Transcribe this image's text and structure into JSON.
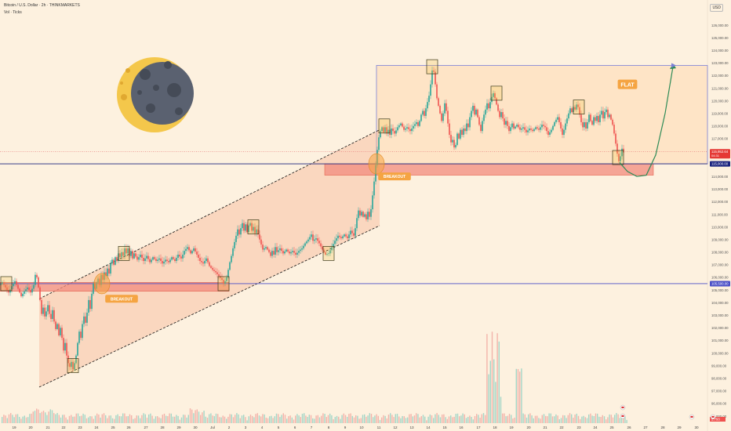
{
  "header": {
    "symbol_line": "Bitcoin / U.S. Dollar · 2h · THINKMARKETS",
    "volume_line": "Vol · Ticks"
  },
  "currency": "USD",
  "chart_data": {
    "type": "candlestick",
    "symbol": "Bitcoin / U.S. Dollar",
    "timeframe": "2h",
    "ylim": [
      94000,
      127000
    ],
    "y_ticks": [
      95000,
      96000,
      97000,
      98000,
      99000,
      100000,
      101000,
      102000,
      103000,
      104000,
      105000,
      106000,
      107000,
      108000,
      109000,
      110000,
      111000,
      112000,
      113000,
      114000,
      115000,
      116000,
      117000,
      118000,
      119000,
      120000,
      121000,
      122000,
      123000,
      124000,
      125000,
      126000
    ],
    "x_labels": [
      "19",
      "20",
      "21",
      "22",
      "23",
      "24",
      "25",
      "26",
      "27",
      "28",
      "29",
      "30",
      "Jul",
      "2",
      "3",
      "4",
      "5",
      "6",
      "7",
      "8",
      "9",
      "10",
      "11",
      "12",
      "13",
      "14",
      "15",
      "16",
      "17",
      "18",
      "19",
      "20",
      "21",
      "22",
      "23",
      "24",
      "25",
      "26",
      "27",
      "28",
      "29",
      "30"
    ],
    "price_path": [
      [
        0,
        105400
      ],
      [
        4,
        105600
      ],
      [
        8,
        105200
      ],
      [
        12,
        104800
      ],
      [
        16,
        105300
      ],
      [
        20,
        105700
      ],
      [
        24,
        105100
      ],
      [
        28,
        104500
      ],
      [
        32,
        104900
      ],
      [
        36,
        105200
      ],
      [
        40,
        104800
      ],
      [
        44,
        105400
      ],
      [
        46,
        106200
      ],
      [
        48,
        106000
      ],
      [
        50,
        105200
      ],
      [
        52,
        104200
      ],
      [
        54,
        103100
      ],
      [
        56,
        103600
      ],
      [
        58,
        102900
      ],
      [
        60,
        103300
      ],
      [
        62,
        103800
      ],
      [
        64,
        103100
      ],
      [
        66,
        102700
      ],
      [
        68,
        103400
      ],
      [
        70,
        102500
      ],
      [
        72,
        101900
      ],
      [
        74,
        102300
      ],
      [
        76,
        101400
      ],
      [
        78,
        102000
      ],
      [
        80,
        101200
      ],
      [
        82,
        100200
      ],
      [
        84,
        100800
      ],
      [
        86,
        99800
      ],
      [
        88,
        99200
      ],
      [
        90,
        98900
      ],
      [
        92,
        99300
      ],
      [
        94,
        98700
      ],
      [
        96,
        99200
      ],
      [
        98,
        99800
      ],
      [
        100,
        100800
      ],
      [
        102,
        101700
      ],
      [
        104,
        101200
      ],
      [
        106,
        102300
      ],
      [
        108,
        102900
      ],
      [
        110,
        102400
      ],
      [
        112,
        103200
      ],
      [
        114,
        104200
      ],
      [
        116,
        103500
      ],
      [
        118,
        104700
      ],
      [
        120,
        105500
      ],
      [
        122,
        105100
      ],
      [
        124,
        105600
      ],
      [
        126,
        105900
      ],
      [
        128,
        105400
      ],
      [
        130,
        106200
      ],
      [
        132,
        105800
      ],
      [
        134,
        106400
      ],
      [
        136,
        106100
      ],
      [
        138,
        106700
      ],
      [
        140,
        106300
      ],
      [
        142,
        107100
      ],
      [
        144,
        107400
      ],
      [
        146,
        107000
      ],
      [
        148,
        107600
      ],
      [
        150,
        107300
      ],
      [
        152,
        107900
      ],
      [
        154,
        107600
      ],
      [
        156,
        108000
      ],
      [
        158,
        107700
      ],
      [
        160,
        108300
      ],
      [
        162,
        107900
      ],
      [
        164,
        108300
      ],
      [
        166,
        107700
      ],
      [
        168,
        108100
      ],
      [
        170,
        107500
      ],
      [
        172,
        107900
      ],
      [
        176,
        107400
      ],
      [
        180,
        107800
      ],
      [
        184,
        107300
      ],
      [
        188,
        107700
      ],
      [
        192,
        107200
      ],
      [
        196,
        107600
      ],
      [
        200,
        107300
      ],
      [
        204,
        107500
      ],
      [
        208,
        107100
      ],
      [
        212,
        107400
      ],
      [
        216,
        107200
      ],
      [
        220,
        107600
      ],
      [
        224,
        107300
      ],
      [
        228,
        107800
      ],
      [
        232,
        107500
      ],
      [
        236,
        108100
      ],
      [
        240,
        108400
      ],
      [
        244,
        107900
      ],
      [
        248,
        108300
      ],
      [
        252,
        107800
      ],
      [
        256,
        107300
      ],
      [
        260,
        107100
      ],
      [
        264,
        107500
      ],
      [
        268,
        106900
      ],
      [
        272,
        106600
      ],
      [
        276,
        106400
      ],
      [
        280,
        106100
      ],
      [
        284,
        105800
      ],
      [
        286,
        105500
      ],
      [
        288,
        105700
      ],
      [
        290,
        106000
      ],
      [
        292,
        106600
      ],
      [
        294,
        107200
      ],
      [
        296,
        107700
      ],
      [
        298,
        108300
      ],
      [
        300,
        108800
      ],
      [
        302,
        109300
      ],
      [
        304,
        109800
      ],
      [
        306,
        109400
      ],
      [
        308,
        109900
      ],
      [
        310,
        110300
      ],
      [
        312,
        109700
      ],
      [
        314,
        110200
      ],
      [
        316,
        109600
      ],
      [
        318,
        110100
      ],
      [
        320,
        110300
      ],
      [
        322,
        109700
      ],
      [
        324,
        110000
      ],
      [
        326,
        109500
      ],
      [
        328,
        109800
      ],
      [
        330,
        109400
      ],
      [
        332,
        109000
      ],
      [
        334,
        108600
      ],
      [
        336,
        108200
      ],
      [
        340,
        108400
      ],
      [
        344,
        108000
      ],
      [
        346,
        107700
      ],
      [
        348,
        108100
      ],
      [
        350,
        107800
      ],
      [
        352,
        108400
      ],
      [
        354,
        108000
      ],
      [
        358,
        108300
      ],
      [
        362,
        107900
      ],
      [
        366,
        108200
      ],
      [
        370,
        107900
      ],
      [
        374,
        108100
      ],
      [
        378,
        107800
      ],
      [
        382,
        108100
      ],
      [
        386,
        108300
      ],
      [
        390,
        108700
      ],
      [
        394,
        109000
      ],
      [
        398,
        109400
      ],
      [
        400,
        108900
      ],
      [
        404,
        109100
      ],
      [
        408,
        108700
      ],
      [
        412,
        108200
      ],
      [
        416,
        107800
      ],
      [
        420,
        107900
      ],
      [
        424,
        108400
      ],
      [
        428,
        108900
      ],
      [
        432,
        109300
      ],
      [
        436,
        109100
      ],
      [
        440,
        109400
      ],
      [
        444,
        109100
      ],
      [
        448,
        109700
      ],
      [
        452,
        109300
      ],
      [
        454,
        109900
      ],
      [
        456,
        110700
      ],
      [
        458,
        111300
      ],
      [
        460,
        110900
      ],
      [
        462,
        111200
      ],
      [
        464,
        110800
      ],
      [
        466,
        111000
      ],
      [
        468,
        110600
      ],
      [
        470,
        111200
      ],
      [
        472,
        110800
      ],
      [
        474,
        111400
      ],
      [
        476,
        112500
      ],
      [
        478,
        113600
      ],
      [
        480,
        114900
      ],
      [
        482,
        116100
      ],
      [
        484,
        117100
      ],
      [
        486,
        117600
      ],
      [
        488,
        117900
      ],
      [
        490,
        117500
      ],
      [
        492,
        117900
      ],
      [
        494,
        117400
      ],
      [
        496,
        117700
      ],
      [
        498,
        117300
      ],
      [
        500,
        117800
      ],
      [
        504,
        117400
      ],
      [
        508,
        117900
      ],
      [
        512,
        118200
      ],
      [
        516,
        117700
      ],
      [
        520,
        117900
      ],
      [
        524,
        117600
      ],
      [
        528,
        118000
      ],
      [
        532,
        118300
      ],
      [
        534,
        118000
      ],
      [
        536,
        118400
      ],
      [
        538,
        118900
      ],
      [
        540,
        119200
      ],
      [
        542,
        118800
      ],
      [
        544,
        119400
      ],
      [
        546,
        119900
      ],
      [
        548,
        120400
      ],
      [
        550,
        121300
      ],
      [
        552,
        122400
      ],
      [
        554,
        122300
      ],
      [
        556,
        121300
      ],
      [
        558,
        120200
      ],
      [
        560,
        119600
      ],
      [
        562,
        119000
      ],
      [
        564,
        118400
      ],
      [
        566,
        119000
      ],
      [
        568,
        119800
      ],
      [
        570,
        119200
      ],
      [
        572,
        118200
      ],
      [
        574,
        117300
      ],
      [
        576,
        116700
      ],
      [
        578,
        116900
      ],
      [
        580,
        116300
      ],
      [
        582,
        116500
      ],
      [
        584,
        117400
      ],
      [
        586,
        117000
      ],
      [
        588,
        117700
      ],
      [
        590,
        117300
      ],
      [
        592,
        117800
      ],
      [
        594,
        117600
      ],
      [
        596,
        118200
      ],
      [
        598,
        117900
      ],
      [
        600,
        118700
      ],
      [
        602,
        119200
      ],
      [
        604,
        119600
      ],
      [
        606,
        118900
      ],
      [
        608,
        119300
      ],
      [
        610,
        118700
      ],
      [
        612,
        118100
      ],
      [
        614,
        117600
      ],
      [
        616,
        118400
      ],
      [
        618,
        118900
      ],
      [
        620,
        119300
      ],
      [
        622,
        119800
      ],
      [
        624,
        119400
      ],
      [
        626,
        119900
      ],
      [
        628,
        120300
      ],
      [
        630,
        120600
      ],
      [
        632,
        120200
      ],
      [
        634,
        119700
      ],
      [
        636,
        119200
      ],
      [
        638,
        118700
      ],
      [
        640,
        119100
      ],
      [
        642,
        118600
      ],
      [
        644,
        118100
      ],
      [
        646,
        118400
      ],
      [
        648,
        118000
      ],
      [
        650,
        117600
      ],
      [
        652,
        117900
      ],
      [
        654,
        118200
      ],
      [
        656,
        117800
      ],
      [
        660,
        118100
      ],
      [
        664,
        117700
      ],
      [
        668,
        117900
      ],
      [
        672,
        117500
      ],
      [
        676,
        117800
      ],
      [
        680,
        117600
      ],
      [
        684,
        117900
      ],
      [
        688,
        117700
      ],
      [
        692,
        118100
      ],
      [
        696,
        117900
      ],
      [
        700,
        117300
      ],
      [
        704,
        117700
      ],
      [
        708,
        118300
      ],
      [
        712,
        118700
      ],
      [
        714,
        118300
      ],
      [
        716,
        117800
      ],
      [
        718,
        117300
      ],
      [
        720,
        117700
      ],
      [
        722,
        118200
      ],
      [
        724,
        118600
      ],
      [
        726,
        119000
      ],
      [
        728,
        119400
      ],
      [
        730,
        119100
      ],
      [
        732,
        119500
      ],
      [
        734,
        119300
      ],
      [
        736,
        119700
      ],
      [
        738,
        119500
      ],
      [
        740,
        118900
      ],
      [
        742,
        118300
      ],
      [
        744,
        117900
      ],
      [
        746,
        118300
      ],
      [
        748,
        117800
      ],
      [
        750,
        118300
      ],
      [
        752,
        118900
      ],
      [
        754,
        118400
      ],
      [
        756,
        118100
      ],
      [
        758,
        118700
      ],
      [
        760,
        118400
      ],
      [
        762,
        118800
      ],
      [
        764,
        118300
      ],
      [
        766,
        118900
      ],
      [
        768,
        119200
      ],
      [
        770,
        118600
      ],
      [
        772,
        119100
      ],
      [
        774,
        119300
      ],
      [
        776,
        118700
      ],
      [
        778,
        118900
      ],
      [
        780,
        118500
      ],
      [
        782,
        118100
      ],
      [
        784,
        117400
      ],
      [
        786,
        116600
      ],
      [
        788,
        115800
      ],
      [
        790,
        115200
      ],
      [
        792,
        115600
      ],
      [
        794,
        116200
      ],
      [
        796,
        115900
      ]
    ],
    "volume_notes": "spikes near 17-18 and 19",
    "channel": {
      "upper": [
        [
          50,
          104300
        ],
        [
          484,
          117700
        ]
      ],
      "lower": [
        [
          50,
          97300
        ],
        [
          484,
          110100
        ]
      ]
    },
    "flat_range": {
      "top": 122800,
      "bottom": 115000,
      "x": [
        480,
        902
      ]
    },
    "zones": [
      {
        "label": "support-old",
        "top": 105600,
        "bottom": 104900,
        "x": [
          0,
          292
        ]
      },
      {
        "label": "support-new",
        "top": 115000,
        "bottom": 114100,
        "x": [
          414,
          833
        ]
      }
    ],
    "horizontal_levels": [
      {
        "value": 105500,
        "label": "105,500.00",
        "color": "#4a4fc7"
      },
      {
        "value": 115000,
        "label": "115,000.00",
        "color": "#1a237e"
      },
      {
        "value": 115952.64,
        "label": "115,952.64",
        "sub": "04:31",
        "color": "#e53935"
      }
    ],
    "dotted_line": 115952.64,
    "annotations": [
      {
        "text": "BREAKOUT",
        "x": 155,
        "price": 104300
      },
      {
        "text": "BREAKOUT",
        "x": 503,
        "price": 114000
      },
      {
        "text": "FLAT",
        "x": 800,
        "price": 121300
      }
    ],
    "projection": [
      [
        790,
        115100
      ],
      [
        800,
        114400
      ],
      [
        812,
        114000
      ],
      [
        824,
        114100
      ],
      [
        836,
        115700
      ],
      [
        848,
        119000
      ],
      [
        858,
        122700
      ]
    ],
    "volume_price_tag": "2.793"
  },
  "colors": {
    "up": "#26a69a",
    "down": "#ef5350",
    "background": "#fdf1df",
    "channel_fill": "#f7b89a",
    "zone": "#f28b7d",
    "flat_box": "#ffd8b0",
    "label_bg": "#f5a442",
    "projection": "#2e8b57"
  },
  "icons": [
    "moon-icon",
    "flag-icon"
  ]
}
